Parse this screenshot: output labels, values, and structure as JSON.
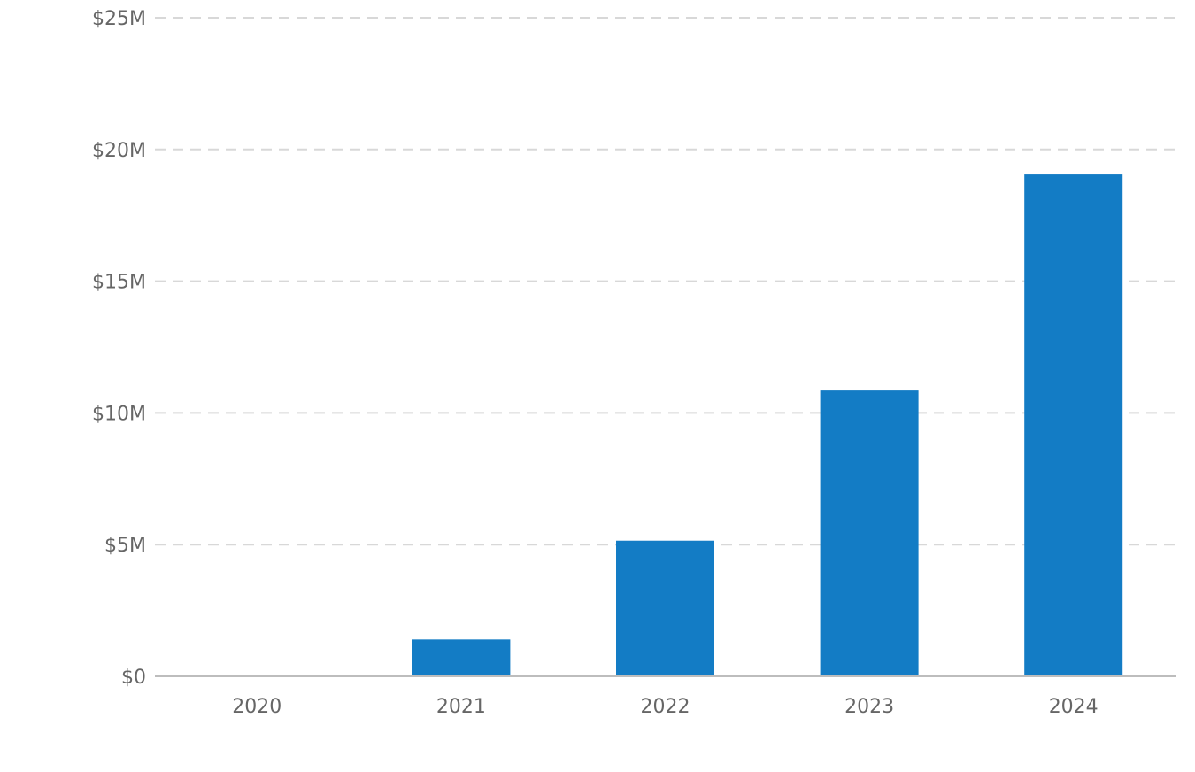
{
  "chart_data": {
    "type": "bar",
    "categories": [
      "2020",
      "2021",
      "2022",
      "2023",
      "2024"
    ],
    "values": [
      0,
      1400000,
      5150000,
      10850000,
      19050000
    ],
    "title": "",
    "xlabel": "",
    "ylabel": "",
    "ylim": [
      0,
      25000000
    ],
    "y_ticks": [
      0,
      5000000,
      10000000,
      15000000,
      20000000,
      25000000
    ],
    "y_tick_labels": [
      "$0",
      "$5M",
      "$10M",
      "$15M",
      "$20M",
      "$25M"
    ],
    "grid": true,
    "legend": "none",
    "bar_color": "#137cc5"
  }
}
